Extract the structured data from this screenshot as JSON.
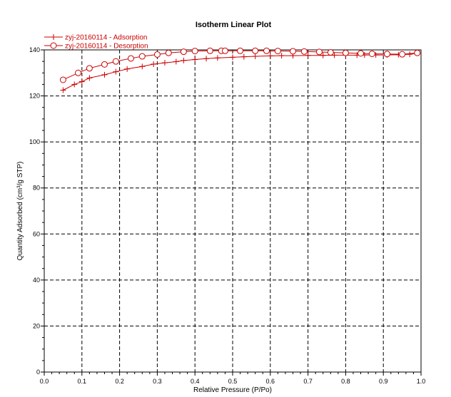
{
  "chart_data": {
    "type": "line",
    "title": "Isotherm Linear Plot",
    "xlabel": "Relative Pressure (P/Po)",
    "ylabel": "Quantity Adsorbed (cm³/g STP)",
    "xlim": [
      0,
      1
    ],
    "ylim": [
      0,
      140
    ],
    "xticks": [
      0.0,
      0.1,
      0.2,
      0.3,
      0.4,
      0.5,
      0.6,
      0.7,
      0.8,
      0.9,
      1.0
    ],
    "xtick_labels": [
      "0.0",
      "0.1",
      "0.2",
      "0.3",
      "0.4",
      "0.5",
      "0.6",
      "0.7",
      "0.8",
      "0.9",
      "1.0"
    ],
    "yticks": [
      0,
      20,
      40,
      60,
      80,
      100,
      120,
      140
    ],
    "ytick_labels": [
      "0",
      "20",
      "40",
      "60",
      "80",
      "100",
      "120",
      "140"
    ],
    "grid": true,
    "legend_position": "top-left",
    "series": [
      {
        "name": "zyj-20160114 - Adsorption",
        "marker": "plus",
        "color": "#cc0000",
        "x": [
          0.05,
          0.08,
          0.1,
          0.12,
          0.16,
          0.19,
          0.22,
          0.26,
          0.29,
          0.32,
          0.35,
          0.37,
          0.4,
          0.43,
          0.46,
          0.5,
          0.53,
          0.56,
          0.6,
          0.63,
          0.66,
          0.7,
          0.74,
          0.77,
          0.8,
          0.83,
          0.85,
          0.88,
          0.91,
          0.94,
          0.97,
          0.99
        ],
        "y": [
          122.5,
          125,
          126.2,
          127.8,
          129.2,
          130.5,
          131.7,
          132.8,
          133.8,
          134.4,
          134.9,
          135.4,
          135.8,
          136.2,
          136.5,
          136.8,
          137,
          137.2,
          137.4,
          137.5,
          137.5,
          137.6,
          137.6,
          137.7,
          137.7,
          137.7,
          137.8,
          137.8,
          137.8,
          137.9,
          138.1,
          138.6
        ]
      },
      {
        "name": "zyj-20160114 - Desorption",
        "marker": "circle",
        "color": "#cc0000",
        "x": [
          0.05,
          0.09,
          0.12,
          0.16,
          0.19,
          0.23,
          0.26,
          0.3,
          0.33,
          0.37,
          0.4,
          0.44,
          0.47,
          0.48,
          0.52,
          0.56,
          0.59,
          0.62,
          0.66,
          0.69,
          0.73,
          0.76,
          0.8,
          0.84,
          0.87,
          0.91,
          0.95,
          0.99
        ],
        "y": [
          127,
          130,
          132,
          133.7,
          135,
          136.3,
          137.2,
          138,
          138.7,
          139.2,
          139.5,
          139.6,
          139.6,
          139.6,
          139.6,
          139.6,
          139.6,
          139.5,
          139.4,
          139.3,
          139.1,
          138.9,
          138.7,
          138.5,
          138.3,
          138.2,
          138.1,
          138.7
        ]
      }
    ]
  }
}
